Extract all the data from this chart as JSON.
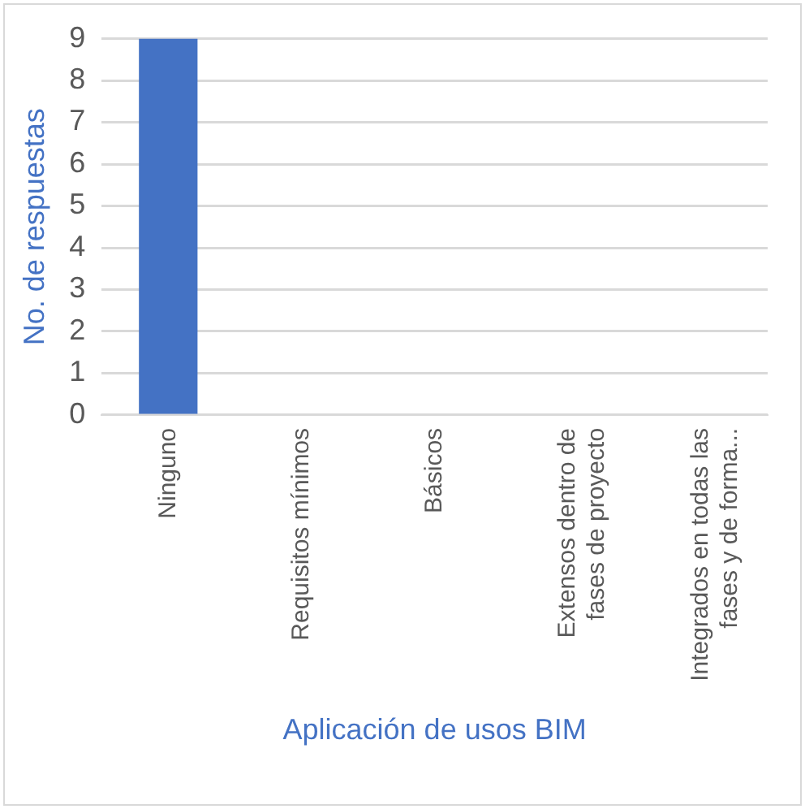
{
  "chart_data": {
    "type": "bar",
    "xlabel": "Aplicación de usos BIM",
    "ylabel": "No. de respuestas",
    "categories": [
      "Ninguno",
      "Requisitos mínimos",
      "Básicos",
      "Extensos dentro de fases de proyecto",
      "Integrados en todas las fases y de forma..."
    ],
    "values": [
      9,
      0,
      0,
      0,
      0
    ],
    "color": "#4472c4",
    "ylim": [
      0,
      9
    ],
    "yticks": [
      0,
      1,
      2,
      3,
      4,
      5,
      6,
      7,
      8,
      9
    ],
    "grid": "y",
    "legend": false
  }
}
